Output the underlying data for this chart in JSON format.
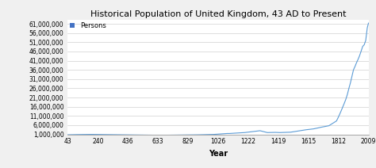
{
  "title": "Historical Population of United Kingdom, 43 AD to Present",
  "xlabel": "Year",
  "legend_label": "Persons",
  "legend_color": "#4472c4",
  "line_color": "#5b9bd5",
  "background_color": "#f0f0f0",
  "plot_bg_color": "#ffffff",
  "ylim": [
    1000000,
    63000000
  ],
  "xlim": [
    43,
    2009
  ],
  "yticks": [
    1000000,
    6000000,
    11000000,
    16000000,
    21000000,
    26000000,
    31000000,
    36000000,
    41000000,
    46000000,
    51000000,
    56000000,
    61000000
  ],
  "xticks": [
    43,
    240,
    436,
    633,
    829,
    1026,
    1222,
    1419,
    1615,
    1812,
    2009
  ],
  "years": [
    43,
    100,
    200,
    300,
    400,
    500,
    600,
    700,
    800,
    900,
    1000,
    1086,
    1100,
    1200,
    1300,
    1348,
    1400,
    1430,
    1500,
    1600,
    1650,
    1700,
    1750,
    1800,
    1811,
    1821,
    1831,
    1841,
    1851,
    1861,
    1871,
    1881,
    1891,
    1901,
    1911,
    1921,
    1931,
    1941,
    1951,
    1961,
    1971,
    1981,
    1991,
    2001,
    2009
  ],
  "population": [
    800000,
    900000,
    1000000,
    900000,
    800000,
    700000,
    600000,
    600000,
    700000,
    800000,
    1000000,
    1500000,
    1500000,
    2000000,
    3000000,
    2000000,
    2100000,
    2000000,
    2200000,
    3500000,
    4000000,
    4900000,
    5700000,
    8300000,
    10164000,
    12000000,
    13897000,
    15914000,
    17928000,
    20066000,
    22712000,
    25974000,
    29003000,
    32528000,
    36070000,
    37887000,
    39952000,
    41748000,
    43758000,
    46196000,
    48749000,
    49634000,
    52000000,
    58789000,
    61400000
  ],
  "title_fontsize": 8,
  "tick_fontsize": 5.5,
  "xlabel_fontsize": 7,
  "legend_fontsize": 6
}
